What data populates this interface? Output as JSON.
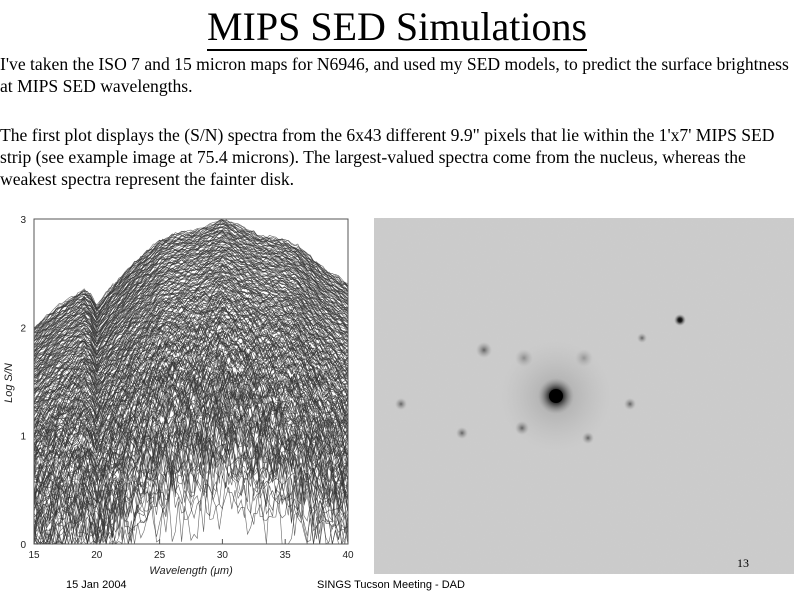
{
  "slide": {
    "title": "MIPS SED Simulations",
    "paragraph_1": "I've taken the ISO 7 and 15 micron maps for N6946, and used my SED models, to predict the surface brightness at MIPS SED wavelengths.",
    "paragraph_2": "The first plot displays the (S/N) spectra from the 6x43 different 9.9\" pixels that lie within the 1'x7' MIPS SED strip (see example image at 75.4 microns). The largest-valued spectra come from the nucleus, whereas the weakest spectra represent the fainter disk.",
    "footer_date": "15 Jan 2004",
    "footer_meeting": "SINGS Tucson Meeting - DAD",
    "page_number": "13"
  },
  "chart_data": {
    "type": "line",
    "xlabel": "Wavelength (μm)",
    "ylabel": "Log S/N",
    "xlim": [
      15,
      40
    ],
    "ylim": [
      0,
      3
    ],
    "x_ticks": [
      "15",
      "20",
      "25",
      "30",
      "35",
      "40"
    ],
    "y_ticks": [
      "0",
      "1",
      "2",
      "3"
    ],
    "x": [
      15,
      17,
      19,
      19.5,
      20,
      21,
      23,
      25,
      26,
      28,
      30,
      31,
      33,
      35,
      36,
      38,
      40
    ],
    "envelope_top": {
      "name": "",
      "values": [
        2.0,
        2.2,
        2.35,
        2.3,
        2.2,
        2.35,
        2.6,
        2.8,
        2.85,
        2.9,
        3.0,
        2.95,
        2.85,
        2.8,
        2.75,
        2.55,
        2.4
      ]
    },
    "n_spectra": 258,
    "grid": false,
    "legend": "none"
  },
  "image": {
    "caption_wavelength": "75.4 microns"
  }
}
